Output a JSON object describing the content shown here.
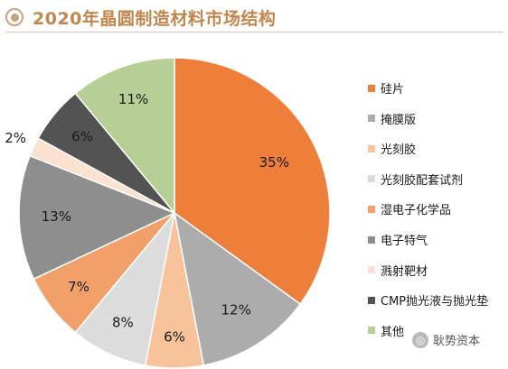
{
  "title": "2020年晶圆制造材料市场结构",
  "watermark": "耿势资本",
  "chart_data": {
    "type": "pie",
    "title": "2020年晶圆制造材料市场结构",
    "unit": "%",
    "legend_position": "right",
    "slices": [
      {
        "label": "硅片",
        "value": 35,
        "value_label": "35%",
        "color": "#ee7f3b"
      },
      {
        "label": "掩膜版",
        "value": 12,
        "value_label": "12%",
        "color": "#acacac"
      },
      {
        "label": "光刻胶",
        "value": 6,
        "value_label": "6%",
        "color": "#f8c29a"
      },
      {
        "label": "光刻胶配套试剂",
        "value": 8,
        "value_label": "8%",
        "color": "#dcdcdc"
      },
      {
        "label": "湿电子化学品",
        "value": 7,
        "value_label": "7%",
        "color": "#f1a06a"
      },
      {
        "label": "电子特气",
        "value": 13,
        "value_label": "13%",
        "color": "#8e8e8e"
      },
      {
        "label": "溅射靶材",
        "value": 2,
        "value_label": "2%",
        "color": "#fbe1cf"
      },
      {
        "label": "CMP抛光液与抛光垫",
        "value": 6,
        "value_label": "6%",
        "color": "#535353"
      },
      {
        "label": "其他",
        "value": 11,
        "value_label": "11%",
        "color": "#b5cf95"
      }
    ]
  }
}
